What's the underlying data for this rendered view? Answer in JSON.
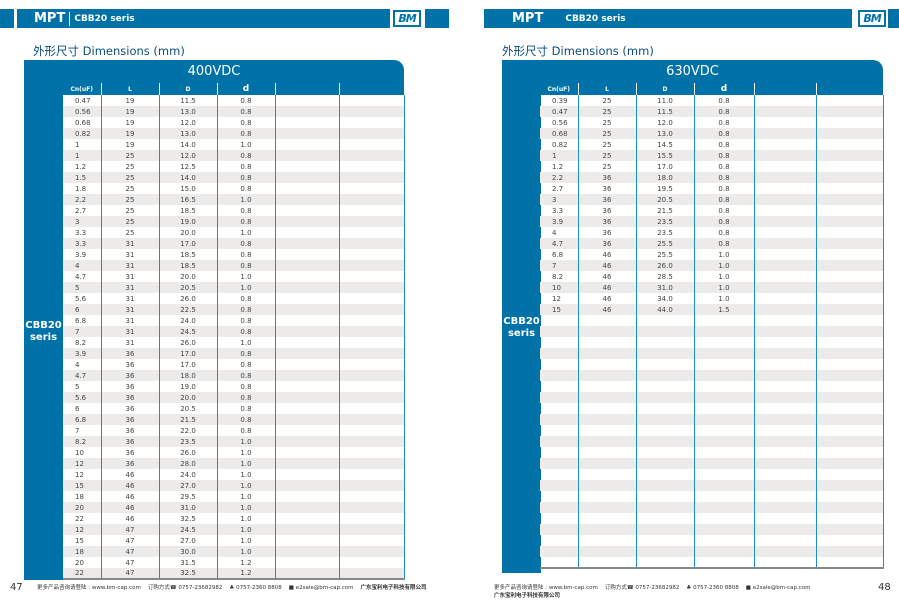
{
  "header": {
    "brand": "MPT",
    "series": "CBB20 seris",
    "logo": "BM"
  },
  "section_title": "外形尺寸 Dimensions (mm)",
  "side_label": "CBB20 seris",
  "columns": [
    "Cn(uF)",
    "L",
    "D",
    "d",
    "",
    ""
  ],
  "footer": {
    "more": "更多产品咨询请登陆 : www.bm-cap.com",
    "order": "订购方式☎ 0757-23682982",
    "fax": "♣ 0757-2360 8808",
    "email": "■ e2sale@bm-cap.com",
    "company": "广东宝利电子科技有限公司"
  },
  "left": {
    "page_number": "47",
    "voltage": "400VDC",
    "rows": [
      [
        "0.47",
        "19",
        "11.5",
        "0.8"
      ],
      [
        "0.56",
        "19",
        "13.0",
        "0.8"
      ],
      [
        "0.68",
        "19",
        "12.0",
        "0.8"
      ],
      [
        "0.82",
        "19",
        "13.0",
        "0.8"
      ],
      [
        "1",
        "19",
        "14.0",
        "1.0"
      ],
      [
        "1",
        "25",
        "12.0",
        "0.8"
      ],
      [
        "1.2",
        "25",
        "12.5",
        "0.8"
      ],
      [
        "1.5",
        "25",
        "14.0",
        "0.8"
      ],
      [
        "1.8",
        "25",
        "15.0",
        "0.8"
      ],
      [
        "2.2",
        "25",
        "16.5",
        "1.0"
      ],
      [
        "2.7",
        "25",
        "18.5",
        "0.8"
      ],
      [
        "3",
        "25",
        "19.0",
        "0.8"
      ],
      [
        "3.3",
        "25",
        "20.0",
        "1.0"
      ],
      [
        "3.3",
        "31",
        "17.0",
        "0.8"
      ],
      [
        "3.9",
        "31",
        "18.5",
        "0.8"
      ],
      [
        "4",
        "31",
        "18.5",
        "0.8"
      ],
      [
        "4.7",
        "31",
        "20.0",
        "1.0"
      ],
      [
        "5",
        "31",
        "20.5",
        "1.0"
      ],
      [
        "5.6",
        "31",
        "26.0",
        "0.8"
      ],
      [
        "6",
        "31",
        "22.5",
        "0.8"
      ],
      [
        "6.8",
        "31",
        "24.0",
        "0.8"
      ],
      [
        "7",
        "31",
        "24.5",
        "0.8"
      ],
      [
        "8.2",
        "31",
        "26.0",
        "1.0"
      ],
      [
        "3.9",
        "36",
        "17.0",
        "0.8"
      ],
      [
        "4",
        "36",
        "17.0",
        "0.8"
      ],
      [
        "4.7",
        "36",
        "18.0",
        "0.8"
      ],
      [
        "5",
        "36",
        "19.0",
        "0.8"
      ],
      [
        "5.6",
        "36",
        "20.0",
        "0.8"
      ],
      [
        "6",
        "36",
        "20.5",
        "0.8"
      ],
      [
        "6.8",
        "36",
        "21.5",
        "0.8"
      ],
      [
        "7",
        "36",
        "22.0",
        "0.8"
      ],
      [
        "8.2",
        "36",
        "23.5",
        "1.0"
      ],
      [
        "10",
        "36",
        "26.0",
        "1.0"
      ],
      [
        "12",
        "36",
        "28.0",
        "1.0"
      ],
      [
        "12",
        "46",
        "24.0",
        "1.0"
      ],
      [
        "15",
        "46",
        "27.0",
        "1.0"
      ],
      [
        "18",
        "46",
        "29.5",
        "1.0"
      ],
      [
        "20",
        "46",
        "31.0",
        "1.0"
      ],
      [
        "22",
        "46",
        "32.5",
        "1.0"
      ],
      [
        "12",
        "47",
        "24.5",
        "1.0"
      ],
      [
        "15",
        "47",
        "27.0",
        "1.0"
      ],
      [
        "18",
        "47",
        "30.0",
        "1.0"
      ],
      [
        "20",
        "47",
        "31.5",
        "1.2"
      ],
      [
        "22",
        "47",
        "32.5",
        "1.2"
      ]
    ]
  },
  "right": {
    "page_number": "48",
    "voltage": "630VDC",
    "rows": [
      [
        "0.39",
        "25",
        "11.0",
        "0.8"
      ],
      [
        "0.47",
        "25",
        "11.5",
        "0.8"
      ],
      [
        "0.56",
        "25",
        "12.0",
        "0.8"
      ],
      [
        "0.68",
        "25",
        "13.0",
        "0.8"
      ],
      [
        "0.82",
        "25",
        "14.5",
        "0.8"
      ],
      [
        "1",
        "25",
        "15.5",
        "0.8"
      ],
      [
        "1.2",
        "25",
        "17.0",
        "0.8"
      ],
      [
        "2.2",
        "36",
        "18.0",
        "0.8"
      ],
      [
        "2.7",
        "36",
        "19.5",
        "0.8"
      ],
      [
        "3",
        "36",
        "20.5",
        "0.8"
      ],
      [
        "3.3",
        "36",
        "21.5",
        "0.8"
      ],
      [
        "3.9",
        "36",
        "23.5",
        "0.8"
      ],
      [
        "4",
        "36",
        "23.5",
        "0.8"
      ],
      [
        "4.7",
        "36",
        "25.5",
        "0.8"
      ],
      [
        "6.8",
        "46",
        "25.5",
        "1.0"
      ],
      [
        "7",
        "46",
        "26.0",
        "1.0"
      ],
      [
        "8.2",
        "46",
        "28.5",
        "1.0"
      ],
      [
        "10",
        "46",
        "31.0",
        "1.0"
      ],
      [
        "12",
        "46",
        "34.0",
        "1.0"
      ],
      [
        "15",
        "46",
        "44.0",
        "1.5"
      ]
    ]
  }
}
